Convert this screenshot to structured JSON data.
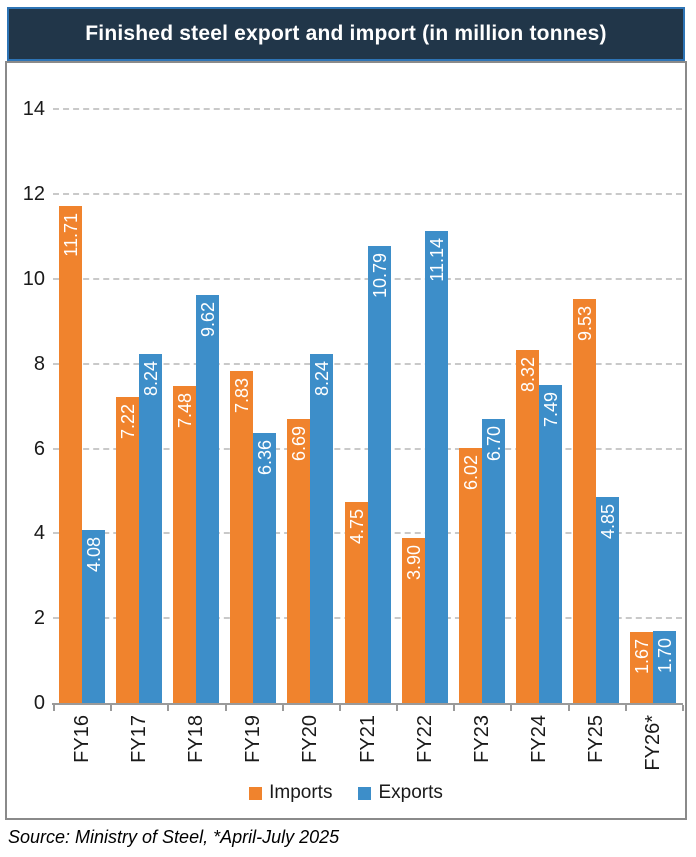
{
  "header": {
    "title": "Finished steel export and import (in million tonnes)"
  },
  "chart_data": {
    "type": "bar",
    "title": "Finished steel export and import (in million tonnes)",
    "categories": [
      "FY16",
      "FY17",
      "FY18",
      "FY19",
      "FY20",
      "FY21",
      "FY22",
      "FY23",
      "FY24",
      "FY25",
      "FY26*"
    ],
    "series": [
      {
        "name": "Imports",
        "color": "#F0832D",
        "values": [
          11.71,
          7.22,
          7.48,
          7.83,
          6.69,
          4.75,
          3.9,
          6.02,
          8.32,
          9.53,
          1.67
        ]
      },
      {
        "name": "Exports",
        "color": "#3D8EC9",
        "values": [
          4.08,
          8.24,
          9.62,
          6.36,
          8.24,
          10.79,
          11.14,
          6.7,
          7.49,
          4.85,
          1.7
        ]
      }
    ],
    "xlabel": "",
    "ylabel": "",
    "ylim": [
      0,
      14
    ],
    "yticks": [
      0,
      2,
      4,
      6,
      8,
      10,
      12,
      14
    ],
    "grid": true,
    "gridstyle": "dashed",
    "legend_position": "bottom",
    "value_label_format": "2-decimal, white, rotated 90° inside bar top"
  },
  "footer": {
    "source": "Source: Ministry of Steel, *April-July 2025"
  },
  "colors": {
    "imports": "#F0832D",
    "exports": "#3D8EC9",
    "title_background": "#213649",
    "title_border": "#2E74B5",
    "chart_border": "#8A8A8A",
    "axis": "#9A9A9A",
    "gridline": "#C9C9C9"
  }
}
